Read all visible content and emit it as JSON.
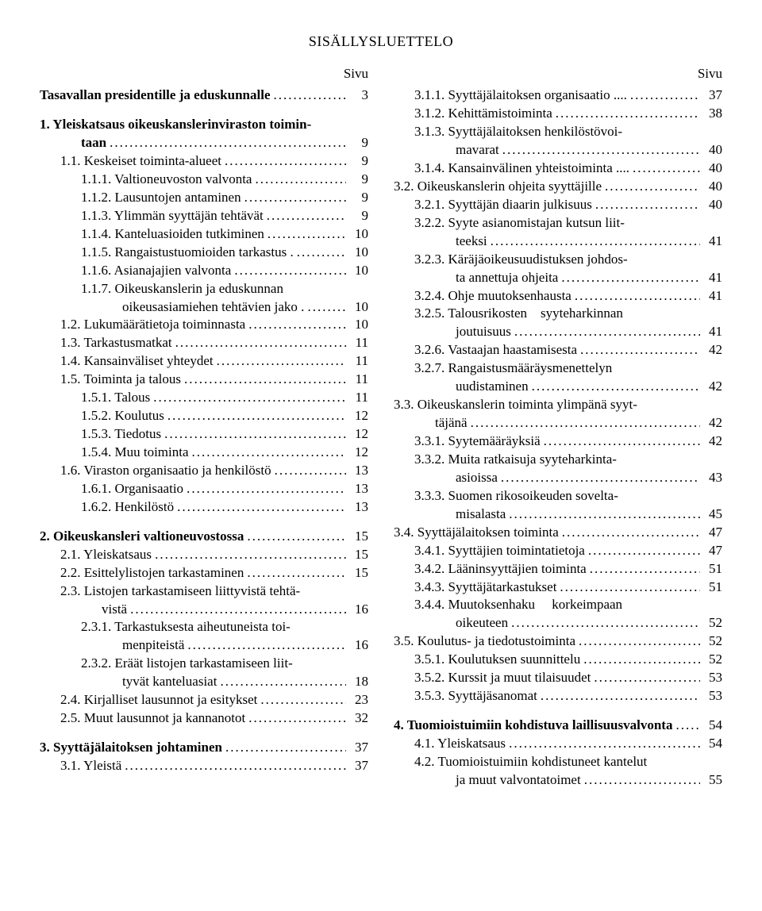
{
  "title": "SISÄLLYSLUETTELO",
  "pageHeader": "Sivu",
  "left": [
    {
      "type": "entry",
      "indent": 0,
      "bold": true,
      "label": "Tasavallan presidentille ja eduskunnalle",
      "page": "3"
    },
    {
      "type": "spacer"
    },
    {
      "type": "cont",
      "indent": 0,
      "bold": true,
      "label": "1. Yleiskatsaus oikeuskanslerinviraston toimin-"
    },
    {
      "type": "entry",
      "indent": 1,
      "bold": true,
      "label": "taan",
      "page": "9",
      "labelStyle": "hang"
    },
    {
      "type": "entry",
      "indent": 1,
      "bold": false,
      "label": "1.1. Keskeiset toiminta-alueet",
      "page": "9"
    },
    {
      "type": "entry",
      "indent": 2,
      "bold": false,
      "label": "1.1.1. Valtioneuvoston valvonta",
      "page": "9"
    },
    {
      "type": "entry",
      "indent": 2,
      "bold": false,
      "label": "1.1.2. Lausuntojen antaminen",
      "page": "9"
    },
    {
      "type": "entry",
      "indent": 2,
      "bold": false,
      "label": "1.1.3. Ylimmän syyttäjän tehtävät",
      "page": "9"
    },
    {
      "type": "entry",
      "indent": 2,
      "bold": false,
      "label": "1.1.4. Kanteluasioiden tutkiminen",
      "page": "10"
    },
    {
      "type": "entry",
      "indent": 2,
      "bold": false,
      "label": "1.1.5. Rangaistustuomioiden tarkastus .",
      "page": "10"
    },
    {
      "type": "entry",
      "indent": 2,
      "bold": false,
      "label": "1.1.6. Asianajajien valvonta",
      "page": "10"
    },
    {
      "type": "cont",
      "indent": 2,
      "bold": false,
      "label": "1.1.7. Oikeuskanslerin ja eduskunnan"
    },
    {
      "type": "entry",
      "indent": 3,
      "bold": false,
      "label": "oikeusasiamiehen tehtävien jako .",
      "page": "10",
      "labelStyle": "hang"
    },
    {
      "type": "entry",
      "indent": 1,
      "bold": false,
      "label": "1.2. Lukumäärätietoja toiminnasta",
      "page": "10"
    },
    {
      "type": "entry",
      "indent": 1,
      "bold": false,
      "label": "1.3. Tarkastusmatkat",
      "page": "11"
    },
    {
      "type": "entry",
      "indent": 1,
      "bold": false,
      "label": "1.4. Kansainväliset yhteydet",
      "page": "11"
    },
    {
      "type": "entry",
      "indent": 1,
      "bold": false,
      "label": "1.5. Toiminta ja talous",
      "page": "11"
    },
    {
      "type": "entry",
      "indent": 2,
      "bold": false,
      "label": "1.5.1. Talous",
      "page": "11"
    },
    {
      "type": "entry",
      "indent": 2,
      "bold": false,
      "label": "1.5.2. Koulutus",
      "page": "12"
    },
    {
      "type": "entry",
      "indent": 2,
      "bold": false,
      "label": "1.5.3. Tiedotus",
      "page": "12"
    },
    {
      "type": "entry",
      "indent": 2,
      "bold": false,
      "label": "1.5.4. Muu toiminta",
      "page": "12"
    },
    {
      "type": "entry",
      "indent": 1,
      "bold": false,
      "label": "1.6. Viraston organisaatio ja henkilöstö",
      "page": "13"
    },
    {
      "type": "entry",
      "indent": 2,
      "bold": false,
      "label": "1.6.1. Organisaatio",
      "page": "13"
    },
    {
      "type": "entry",
      "indent": 2,
      "bold": false,
      "label": "1.6.2. Henkilöstö",
      "page": "13"
    },
    {
      "type": "spacer"
    },
    {
      "type": "entry",
      "indent": 0,
      "bold": true,
      "label": "2. Oikeuskansleri valtioneuvostossa",
      "page": "15"
    },
    {
      "type": "entry",
      "indent": 1,
      "bold": false,
      "label": "2.1. Yleiskatsaus",
      "page": "15"
    },
    {
      "type": "entry",
      "indent": 1,
      "bold": false,
      "label": "2.2. Esittelylistojen tarkastaminen",
      "page": "15"
    },
    {
      "type": "cont",
      "indent": 1,
      "bold": false,
      "label": "2.3. Listojen tarkastamiseen liittyvistä tehtä-"
    },
    {
      "type": "entry",
      "indent": 2,
      "bold": false,
      "label": "vistä",
      "page": "16",
      "labelStyle": "hang"
    },
    {
      "type": "cont",
      "indent": 2,
      "bold": false,
      "label": "2.3.1. Tarkastuksesta aiheutuneista toi-"
    },
    {
      "type": "entry",
      "indent": 3,
      "bold": false,
      "label": "menpiteistä",
      "page": "16",
      "labelStyle": "hang"
    },
    {
      "type": "cont",
      "indent": 2,
      "bold": false,
      "label": "2.3.2. Eräät listojen tarkastamiseen liit-"
    },
    {
      "type": "entry",
      "indent": 3,
      "bold": false,
      "label": "tyvät kanteluasiat",
      "page": "18",
      "labelStyle": "hang"
    },
    {
      "type": "entry",
      "indent": 1,
      "bold": false,
      "label": "2.4. Kirjalliset lausunnot ja esitykset",
      "page": "23"
    },
    {
      "type": "entry",
      "indent": 1,
      "bold": false,
      "label": "2.5. Muut lausunnot ja kannanotot",
      "page": "32"
    },
    {
      "type": "spacer"
    },
    {
      "type": "entry",
      "indent": 0,
      "bold": true,
      "label": "3. Syyttäjälaitoksen johtaminen",
      "page": "37"
    },
    {
      "type": "entry",
      "indent": 1,
      "bold": false,
      "label": "3.1. Yleistä",
      "page": "37"
    }
  ],
  "right": [
    {
      "type": "entry",
      "indent": 1,
      "bold": false,
      "label": "3.1.1. Syyttäjälaitoksen organisaatio ....",
      "page": "37"
    },
    {
      "type": "entry",
      "indent": 1,
      "bold": false,
      "label": "3.1.2. Kehittämistoiminta",
      "page": "38"
    },
    {
      "type": "cont",
      "indent": 1,
      "bold": false,
      "label": "3.1.3. Syyttäjälaitoksen henkilöstövoi-"
    },
    {
      "type": "entry",
      "indent": 2,
      "bold": false,
      "label": "mavarat",
      "page": "40",
      "labelStyle": "hang"
    },
    {
      "type": "entry",
      "indent": 1,
      "bold": false,
      "label": "3.1.4. Kansainvälinen yhteistoiminta ....",
      "page": "40"
    },
    {
      "type": "entry",
      "indent": 0,
      "bold": false,
      "label": "3.2. Oikeuskanslerin ohjeita syyttäjille",
      "page": "40"
    },
    {
      "type": "entry",
      "indent": 1,
      "bold": false,
      "label": "3.2.1. Syyttäjän diaarin julkisuus",
      "page": "40"
    },
    {
      "type": "cont",
      "indent": 1,
      "bold": false,
      "label": "3.2.2. Syyte asianomistajan kutsun liit-"
    },
    {
      "type": "entry",
      "indent": 2,
      "bold": false,
      "label": "teeksi",
      "page": "41",
      "labelStyle": "hang"
    },
    {
      "type": "cont",
      "indent": 1,
      "bold": false,
      "label": "3.2.3. Käräjäoikeusuudistuksen johdos-"
    },
    {
      "type": "entry",
      "indent": 2,
      "bold": false,
      "label": "ta annettuja ohjeita",
      "page": "41",
      "labelStyle": "hang"
    },
    {
      "type": "entry",
      "indent": 1,
      "bold": false,
      "label": "3.2.4. Ohje muutoksenhausta",
      "page": "41"
    },
    {
      "type": "cont",
      "indent": 1,
      "bold": false,
      "label": "3.2.5. Talousrikosten    syyteharkinnan"
    },
    {
      "type": "entry",
      "indent": 2,
      "bold": false,
      "label": "joutuisuus",
      "page": "41",
      "labelStyle": "hang"
    },
    {
      "type": "entry",
      "indent": 1,
      "bold": false,
      "label": "3.2.6. Vastaajan haastamisesta",
      "page": "42"
    },
    {
      "type": "cont",
      "indent": 1,
      "bold": false,
      "label": "3.2.7. Rangaistusmääräysmenettelyn"
    },
    {
      "type": "entry",
      "indent": 2,
      "bold": false,
      "label": "uudistaminen",
      "page": "42",
      "labelStyle": "hang"
    },
    {
      "type": "cont",
      "indent": 0,
      "bold": false,
      "label": "3.3. Oikeuskanslerin toiminta ylimpänä syyt-"
    },
    {
      "type": "entry",
      "indent": 1,
      "bold": false,
      "label": "täjänä",
      "page": "42",
      "labelStyle": "hang"
    },
    {
      "type": "entry",
      "indent": 1,
      "bold": false,
      "label": "3.3.1. Syytemääräyksiä",
      "page": "42"
    },
    {
      "type": "cont",
      "indent": 1,
      "bold": false,
      "label": "3.3.2. Muita ratkaisuja syyteharkinta-"
    },
    {
      "type": "entry",
      "indent": 2,
      "bold": false,
      "label": "asioissa",
      "page": "43",
      "labelStyle": "hang"
    },
    {
      "type": "cont",
      "indent": 1,
      "bold": false,
      "label": "3.3.3. Suomen rikosoikeuden sovelta-"
    },
    {
      "type": "entry",
      "indent": 2,
      "bold": false,
      "label": "misalasta",
      "page": "45",
      "labelStyle": "hang"
    },
    {
      "type": "entry",
      "indent": 0,
      "bold": false,
      "label": "3.4. Syyttäjälaitoksen toiminta",
      "page": "47"
    },
    {
      "type": "entry",
      "indent": 1,
      "bold": false,
      "label": "3.4.1. Syyttäjien toimintatietoja",
      "page": "47"
    },
    {
      "type": "entry",
      "indent": 1,
      "bold": false,
      "label": "3.4.2. Lääninsyyttäjien toiminta",
      "page": "51"
    },
    {
      "type": "entry",
      "indent": 1,
      "bold": false,
      "label": "3.4.3. Syyttäjätarkastukset",
      "page": "51"
    },
    {
      "type": "cont",
      "indent": 1,
      "bold": false,
      "label": "3.4.4. Muutoksenhaku     korkeimpaan"
    },
    {
      "type": "entry",
      "indent": 2,
      "bold": false,
      "label": "oikeuteen",
      "page": "52",
      "labelStyle": "hang"
    },
    {
      "type": "entry",
      "indent": 0,
      "bold": false,
      "label": "3.5. Koulutus- ja tiedotustoiminta",
      "page": "52"
    },
    {
      "type": "entry",
      "indent": 1,
      "bold": false,
      "label": "3.5.1. Koulutuksen suunnittelu",
      "page": "52"
    },
    {
      "type": "entry",
      "indent": 1,
      "bold": false,
      "label": "3.5.2. Kurssit ja muut tilaisuudet",
      "page": "53"
    },
    {
      "type": "entry",
      "indent": 1,
      "bold": false,
      "label": "3.5.3. Syyttäjäsanomat",
      "page": "53"
    },
    {
      "type": "spacer"
    },
    {
      "type": "entry",
      "indent": 0,
      "bold": true,
      "label": "4. Tuomioistuimiin kohdistuva laillisuusvalvonta",
      "page": "54"
    },
    {
      "type": "entry",
      "indent": 1,
      "bold": false,
      "label": "4.1. Yleiskatsaus",
      "page": "54"
    },
    {
      "type": "cont",
      "indent": 1,
      "bold": false,
      "label": "4.2. Tuomioistuimiin kohdistuneet kantelut"
    },
    {
      "type": "entry",
      "indent": 2,
      "bold": false,
      "label": "ja muut valvontatoimet",
      "page": "55",
      "labelStyle": "hang"
    }
  ]
}
